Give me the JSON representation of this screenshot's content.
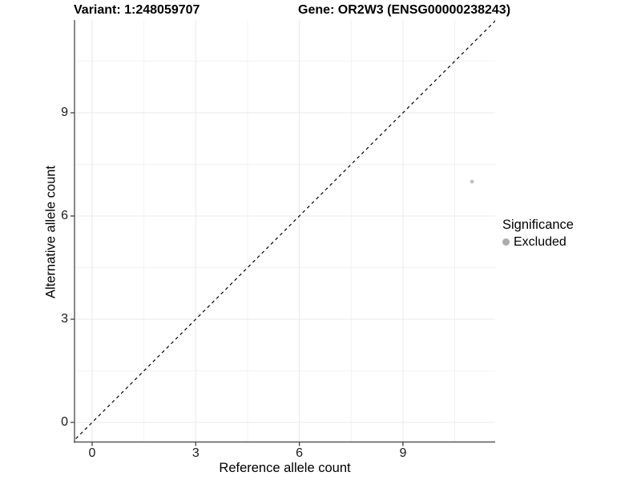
{
  "chart_data": {
    "type": "scatter",
    "title_left": "Variant: 1:248059707",
    "title_right": "Gene: OR2W3 (ENSG00000238243)",
    "xlabel": "Reference allele count",
    "ylabel": "Alternative allele count",
    "xticks": [
      0,
      3,
      6,
      9
    ],
    "yticks": [
      0,
      3,
      6,
      9
    ],
    "minor_ticks": [
      1.5,
      4.5,
      7.5,
      10.5
    ],
    "xlim": [
      -0.55,
      11.7
    ],
    "ylim": [
      -0.55,
      11.7
    ],
    "grid": true,
    "points": [
      {
        "x": 11,
        "y": 7,
        "significance": "Excluded"
      }
    ],
    "reference_line": {
      "style": "dashed",
      "slope": 1,
      "intercept": 0
    },
    "legend": {
      "title": "Significance",
      "position": "right",
      "entries": [
        {
          "label": "Excluded",
          "color": "#ababab"
        }
      ]
    },
    "colors": {
      "point": "#c2c2c2",
      "axis_line": "#555555",
      "tick_mark": "#333333",
      "grid_major": "#e9e9e9",
      "grid_minor": "#f2f2f2",
      "reference_line": "#000000",
      "text": "#000000",
      "background": "#ffffff"
    }
  }
}
